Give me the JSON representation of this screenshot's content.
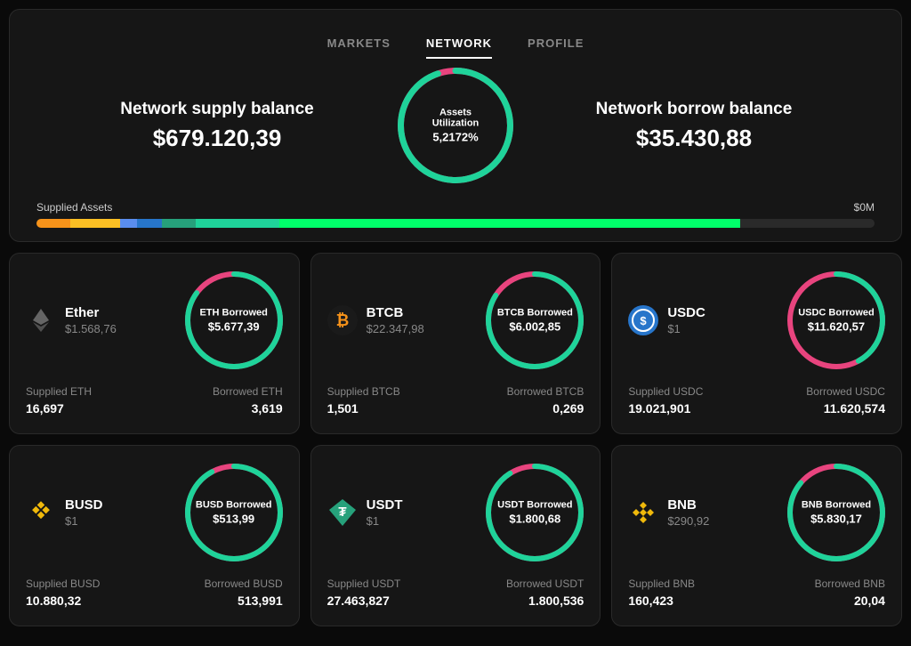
{
  "nav": {
    "markets": "MARKETS",
    "network": "NETWORK",
    "profile": "PROFILE",
    "active": "network"
  },
  "main": {
    "supply_title": "Network supply balance",
    "supply_value": "$679.120,39",
    "borrow_title": "Network borrow balance",
    "borrow_value": "$35.430,88",
    "util_label": "Assets Utilization",
    "util_value": "5,2172%",
    "util_pct": 5.2172,
    "util_color_main": "#1fd39a",
    "util_color_accent": "#e8447e",
    "supplied_label": "Supplied Assets",
    "supplied_total": "$0M",
    "bar_segments": [
      {
        "color": "#f7931a",
        "pct": 4
      },
      {
        "color": "#fbbf24",
        "pct": 6
      },
      {
        "color": "#5a8dee",
        "pct": 2
      },
      {
        "color": "#2775ca",
        "pct": 3
      },
      {
        "color": "#26a17b",
        "pct": 4
      },
      {
        "color": "#1fd39a",
        "pct": 10
      },
      {
        "color": "#00ff6a",
        "pct": 55
      },
      {
        "color": "#2a2a2a",
        "pct": 16
      }
    ]
  },
  "cards": [
    {
      "name": "Ether",
      "price": "$1.568,76",
      "icon_bg": "#3a3a3a",
      "icon_fg": "#888",
      "icon_type": "eth",
      "borrowed_label": "ETH Borrowed",
      "borrowed_value": "$5.677,39",
      "ring_pct": 85,
      "ring_main": "#1fd39a",
      "ring_accent": "#e8447e",
      "supplied_label": "Supplied ETH",
      "supplied_val": "16,697",
      "borrowed_stat_label": "Borrowed ETH",
      "borrowed_stat_val": "3,619"
    },
    {
      "name": "BTCB",
      "price": "$22.347,98",
      "icon_bg": "#1a1a1a",
      "icon_fg": "#f7931a",
      "icon_type": "btc",
      "borrowed_label": "BTCB Borrowed",
      "borrowed_value": "$6.002,85",
      "ring_pct": 84,
      "ring_main": "#1fd39a",
      "ring_accent": "#e8447e",
      "supplied_label": "Supplied BTCB",
      "supplied_val": "1,501",
      "borrowed_stat_label": "Borrowed BTCB",
      "borrowed_stat_val": "0,269"
    },
    {
      "name": "USDC",
      "price": "$1",
      "icon_bg": "#2775ca",
      "icon_fg": "#fff",
      "icon_type": "usdc",
      "borrowed_label": "USDC Borrowed",
      "borrowed_value": "$11.620,57",
      "ring_pct": 42,
      "ring_main": "#1fd39a",
      "ring_accent": "#e8447e",
      "supplied_label": "Supplied USDC",
      "supplied_val": "19.021,901",
      "borrowed_stat_label": "Borrowed USDC",
      "borrowed_stat_val": "11.620,574"
    },
    {
      "name": "BUSD",
      "price": "$1",
      "icon_bg": "transparent",
      "icon_fg": "#f0b90b",
      "icon_type": "busd",
      "borrowed_label": "BUSD Borrowed",
      "borrowed_value": "$513,99",
      "ring_pct": 92,
      "ring_main": "#1fd39a",
      "ring_accent": "#e8447e",
      "supplied_label": "Supplied BUSD",
      "supplied_val": "10.880,32",
      "borrowed_stat_label": "Borrowed BUSD",
      "borrowed_stat_val": "513,991"
    },
    {
      "name": "USDT",
      "price": "$1",
      "icon_bg": "#26a17b",
      "icon_fg": "#fff",
      "icon_type": "usdt",
      "borrowed_label": "USDT Borrowed",
      "borrowed_value": "$1.800,68",
      "ring_pct": 91,
      "ring_main": "#1fd39a",
      "ring_accent": "#e8447e",
      "supplied_label": "Supplied USDT",
      "supplied_val": "27.463,827",
      "borrowed_stat_label": "Borrowed USDT",
      "borrowed_stat_val": "1.800,536"
    },
    {
      "name": "BNB",
      "price": "$290,92",
      "icon_bg": "transparent",
      "icon_fg": "#f0b90b",
      "icon_type": "bnb",
      "borrowed_label": "BNB Borrowed",
      "borrowed_value": "$5.830,17",
      "ring_pct": 86,
      "ring_main": "#1fd39a",
      "ring_accent": "#e8447e",
      "supplied_label": "Supplied BNB",
      "supplied_val": "160,423",
      "borrowed_stat_label": "Borrowed BNB",
      "borrowed_stat_val": "20,04"
    }
  ]
}
